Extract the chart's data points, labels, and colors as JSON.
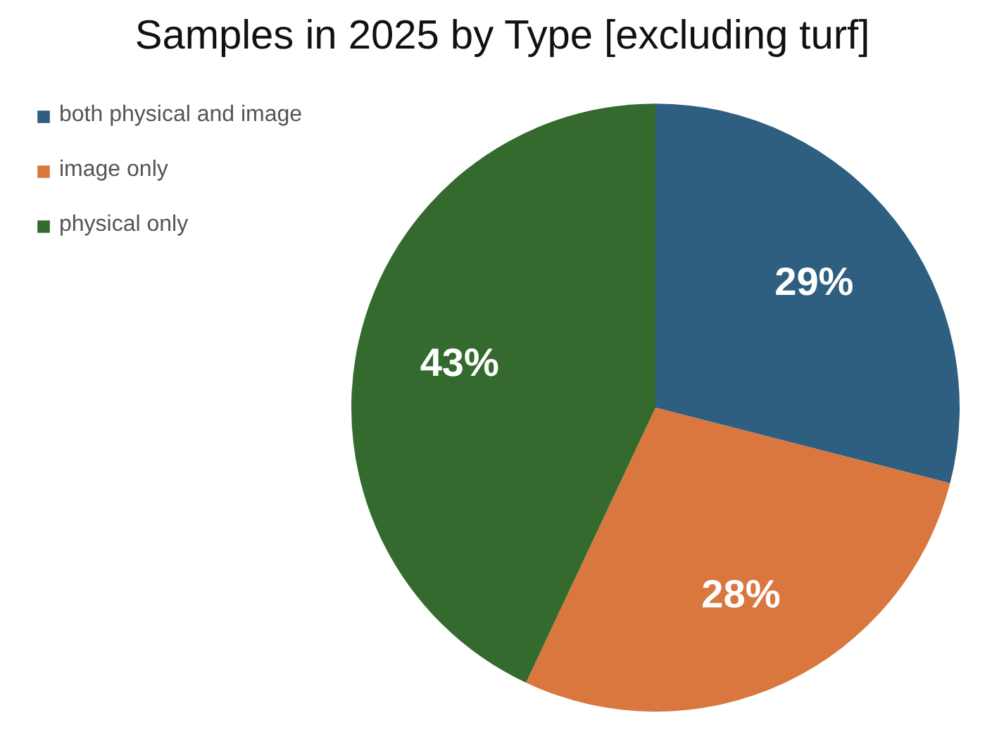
{
  "chart_data": {
    "type": "pie",
    "title": "Samples in 2025 by Type [excluding turf]",
    "categories": [
      "both physical and image",
      "image only",
      "physical only"
    ],
    "values": [
      29,
      28,
      43
    ],
    "colors": [
      "#2e5f80",
      "#d9773f",
      "#346a2e"
    ],
    "value_labels": [
      "29%",
      "28%",
      "43%"
    ],
    "legend": "top left"
  }
}
